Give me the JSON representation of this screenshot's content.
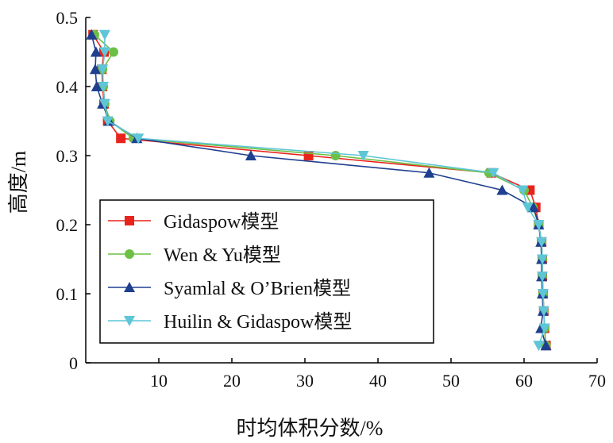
{
  "chart_data": {
    "type": "line",
    "xlabel": "时均体积分数/%",
    "ylabel": "高度/m",
    "xlim": [
      0,
      70
    ],
    "ylim": [
      0,
      0.5
    ],
    "xticks": [
      10,
      20,
      30,
      40,
      50,
      60,
      70
    ],
    "yticks": [
      0,
      0.1,
      0.2,
      0.3,
      0.4,
      0.5
    ],
    "xtick_labels": [
      "10",
      "20",
      "30",
      "40",
      "50",
      "60",
      "70"
    ],
    "ytick_labels": [
      "0",
      "0.1",
      "0.2",
      "0.3",
      "0.4",
      "0.5"
    ],
    "grid": false,
    "legend_position": "lower-left",
    "series": [
      {
        "name": "Gidaspow模型",
        "color": "#e8231c",
        "marker": "square",
        "x": [
          63.0,
          62.8,
          62.7,
          62.6,
          62.5,
          62.5,
          62.4,
          62.0,
          61.6,
          60.8,
          55.5,
          30.5,
          4.8,
          3.0,
          2.5,
          2.3,
          2.2,
          2.5,
          1.0
        ],
        "y": [
          0.025,
          0.05,
          0.075,
          0.1,
          0.125,
          0.15,
          0.175,
          0.2,
          0.225,
          0.25,
          0.275,
          0.3,
          0.325,
          0.35,
          0.375,
          0.4,
          0.425,
          0.45,
          0.475
        ]
      },
      {
        "name": "Wen & Yu模型",
        "color": "#6dbf45",
        "marker": "circle",
        "x": [
          63.0,
          62.8,
          62.7,
          62.6,
          62.5,
          62.5,
          62.4,
          62.0,
          61.2,
          60.0,
          55.2,
          34.2,
          6.5,
          3.3,
          2.6,
          2.4,
          2.3,
          3.8,
          1.2
        ],
        "y": [
          0.025,
          0.05,
          0.075,
          0.1,
          0.125,
          0.15,
          0.175,
          0.2,
          0.225,
          0.25,
          0.275,
          0.3,
          0.325,
          0.35,
          0.375,
          0.4,
          0.425,
          0.45,
          0.475
        ]
      },
      {
        "name": "Syamlal & O’Brien模型",
        "color": "#1f3f8f",
        "marker": "triangle-up",
        "x": [
          63.0,
          62.3,
          62.6,
          62.5,
          62.4,
          62.4,
          62.3,
          62.0,
          61.3,
          57.0,
          47.0,
          22.6,
          7.0,
          3.2,
          2.3,
          1.5,
          1.3,
          1.4,
          0.8
        ],
        "y": [
          0.025,
          0.05,
          0.075,
          0.1,
          0.125,
          0.15,
          0.175,
          0.2,
          0.225,
          0.25,
          0.275,
          0.3,
          0.325,
          0.35,
          0.375,
          0.4,
          0.425,
          0.45,
          0.475
        ]
      },
      {
        "name": "Huilin & Gidaspow模型",
        "color": "#5ec6d6",
        "marker": "triangle-down",
        "x": [
          62.0,
          62.8,
          62.7,
          62.6,
          62.5,
          62.5,
          62.4,
          62.0,
          60.5,
          59.8,
          55.8,
          38.0,
          7.2,
          3.0,
          2.6,
          2.4,
          2.3,
          2.6,
          2.6
        ],
        "y": [
          0.025,
          0.05,
          0.075,
          0.1,
          0.125,
          0.15,
          0.175,
          0.2,
          0.225,
          0.25,
          0.275,
          0.3,
          0.325,
          0.35,
          0.375,
          0.4,
          0.425,
          0.45,
          0.475
        ]
      }
    ]
  }
}
